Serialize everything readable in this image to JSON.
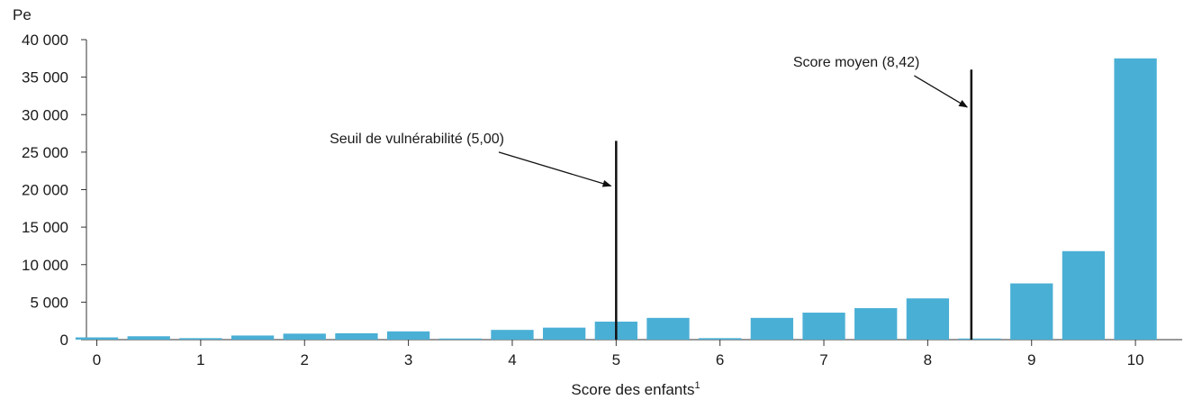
{
  "chart_data": {
    "type": "bar",
    "ylabel": "Pe",
    "xlabel": "Score des enfants",
    "xlabel_sup": "1",
    "ylim": [
      0,
      40000
    ],
    "y_ticks": [
      0,
      5000,
      10000,
      15000,
      20000,
      25000,
      30000,
      35000,
      40000
    ],
    "y_tick_labels": [
      "0",
      "5 000",
      "10 000",
      "15 000",
      "20 000",
      "25 000",
      "30 000",
      "35 000",
      "40 000"
    ],
    "xlim": [
      -0.1,
      10.45
    ],
    "x_ticks": [
      0,
      1,
      2,
      3,
      4,
      5,
      6,
      7,
      8,
      9,
      10
    ],
    "x_tick_labels": [
      "0",
      "1",
      "2",
      "3",
      "4",
      "5",
      "6",
      "7",
      "8",
      "9",
      "10"
    ],
    "bar_color": "#4aafd5",
    "bars": [
      {
        "x": 0.0,
        "value": 300
      },
      {
        "x": 0.5,
        "value": 450
      },
      {
        "x": 1.0,
        "value": 200
      },
      {
        "x": 1.5,
        "value": 550
      },
      {
        "x": 2.0,
        "value": 800
      },
      {
        "x": 2.5,
        "value": 850
      },
      {
        "x": 3.0,
        "value": 1100
      },
      {
        "x": 3.5,
        "value": 150
      },
      {
        "x": 4.0,
        "value": 1300
      },
      {
        "x": 4.5,
        "value": 1600
      },
      {
        "x": 5.0,
        "value": 2400
      },
      {
        "x": 5.5,
        "value": 2900
      },
      {
        "x": 6.0,
        "value": 200
      },
      {
        "x": 6.5,
        "value": 2900
      },
      {
        "x": 7.0,
        "value": 3600
      },
      {
        "x": 7.5,
        "value": 4200
      },
      {
        "x": 8.0,
        "value": 5500
      },
      {
        "x": 8.5,
        "value": 150
      },
      {
        "x": 9.0,
        "value": 7500
      },
      {
        "x": 9.5,
        "value": 11800
      },
      {
        "x": 10.0,
        "value": 37500
      }
    ],
    "reference_lines": [
      {
        "label": "Seuil de vulnérabilité (5,00)",
        "x": 5.0,
        "y_top": 26500,
        "arrow_from": [
          3.87,
          25000
        ],
        "arrow_to": [
          4.95,
          20500
        ]
      },
      {
        "label": "Score moyen (8,42)",
        "x": 8.42,
        "y_top": 36000,
        "arrow_from": [
          7.87,
          35200
        ],
        "arrow_to": [
          8.38,
          31000
        ]
      }
    ],
    "grid": false,
    "legend": "none"
  }
}
